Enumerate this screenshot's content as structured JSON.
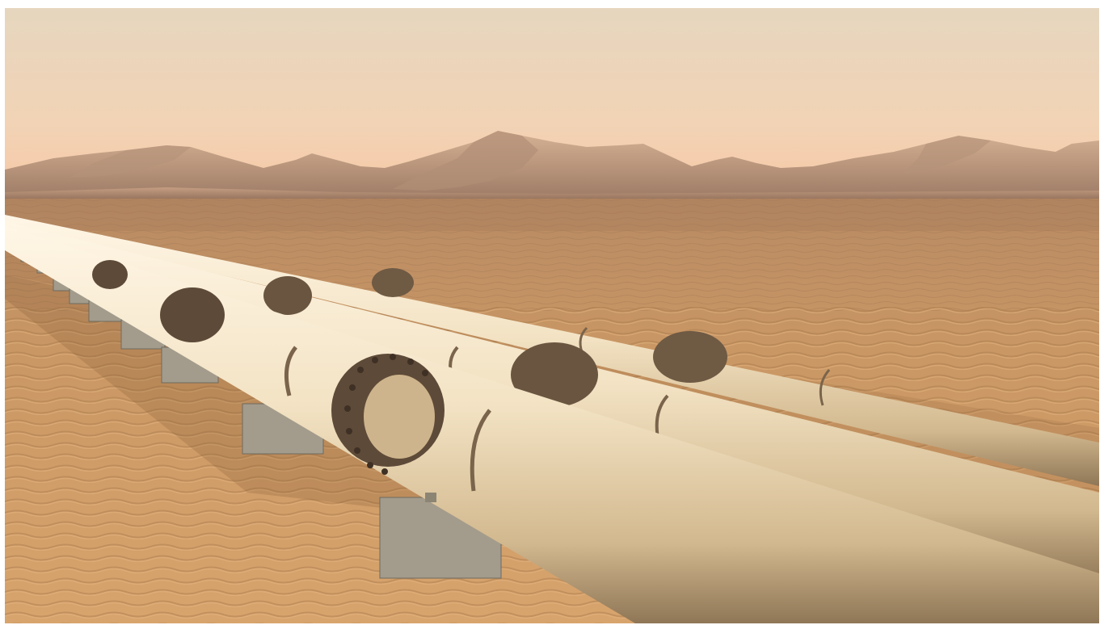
{
  "scene": {
    "subject": "pipeline",
    "setting": "desert",
    "pipe_count": 3,
    "palette": {
      "sky_top": "#e9d7bd",
      "sky_horizon": "#f6c9a6",
      "mountain_light": "#c8a387",
      "mountain_dark": "#8a6a55",
      "sand_light": "#d9a874",
      "sand_mid": "#b98656",
      "sand_dark": "#8e6440",
      "pipe_light": "#fbf0dc",
      "pipe_mid": "#e8d4b2",
      "pipe_shadow": "#7e6a4e",
      "flange": "#6a5540",
      "support": "#9d9585"
    }
  }
}
